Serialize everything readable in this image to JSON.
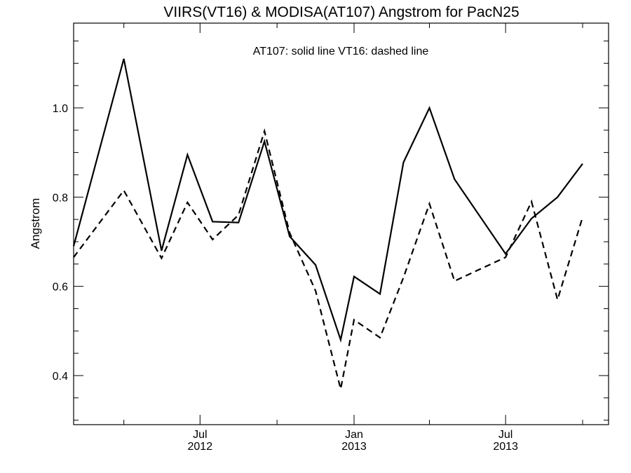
{
  "chart_data": {
    "type": "line",
    "title": "VIIRS(VT16) & MODISA(AT107)  Angstrom for PacN25",
    "ylabel": "Angstrom",
    "xlabel": "",
    "annotation": "AT107: solid line   VT16: dashed line",
    "xlim": [
      "2012-02-01",
      "2013-11-01"
    ],
    "ylim": [
      0.29,
      1.19
    ],
    "yticks": [
      {
        "value": 0.4,
        "label": "0.4"
      },
      {
        "value": 0.6,
        "label": "0.6"
      },
      {
        "value": 0.8,
        "label": "0.8"
      },
      {
        "value": 1.0,
        "label": "1.0"
      }
    ],
    "xticks": [
      {
        "date": "2012-07-01",
        "month": "Jul",
        "year": "2012"
      },
      {
        "date": "2013-01-01",
        "month": "Jan",
        "year": "2013"
      },
      {
        "date": "2013-07-01",
        "month": "Jul",
        "year": "2013"
      }
    ],
    "x_minor_ticks": [
      "2012-04-01",
      "2012-10-01",
      "2013-04-01",
      "2013-10-01"
    ],
    "legend": "none",
    "grid": false,
    "series": [
      {
        "id": "at107",
        "style": "solid",
        "color": "#000000",
        "points": [
          {
            "x": "2012-02-01",
            "y": 0.69
          },
          {
            "x": "2012-04-01",
            "y": 1.11
          },
          {
            "x": "2012-05-16",
            "y": 0.68
          },
          {
            "x": "2012-06-16",
            "y": 0.895
          },
          {
            "x": "2012-07-16",
            "y": 0.745
          },
          {
            "x": "2012-08-16",
            "y": 0.743
          },
          {
            "x": "2012-09-16",
            "y": 0.925
          },
          {
            "x": "2012-10-16",
            "y": 0.712
          },
          {
            "x": "2012-11-16",
            "y": 0.648
          },
          {
            "x": "2012-12-16",
            "y": 0.48
          },
          {
            "x": "2013-01-01",
            "y": 0.622
          },
          {
            "x": "2013-02-01",
            "y": 0.583
          },
          {
            "x": "2013-03-01",
            "y": 0.878
          },
          {
            "x": "2013-04-01",
            "y": 1.0
          },
          {
            "x": "2013-05-01",
            "y": 0.84
          },
          {
            "x": "2013-07-01",
            "y": 0.673
          },
          {
            "x": "2013-08-01",
            "y": 0.752
          },
          {
            "x": "2013-09-01",
            "y": 0.8
          },
          {
            "x": "2013-10-01",
            "y": 0.875
          }
        ]
      },
      {
        "id": "vt16",
        "style": "dashed",
        "color": "#000000",
        "points": [
          {
            "x": "2012-02-01",
            "y": 0.665
          },
          {
            "x": "2012-04-01",
            "y": 0.815
          },
          {
            "x": "2012-05-16",
            "y": 0.663
          },
          {
            "x": "2012-06-16",
            "y": 0.788
          },
          {
            "x": "2012-07-16",
            "y": 0.705
          },
          {
            "x": "2012-08-16",
            "y": 0.76
          },
          {
            "x": "2012-09-16",
            "y": 0.948
          },
          {
            "x": "2012-10-16",
            "y": 0.72
          },
          {
            "x": "2012-11-16",
            "y": 0.59
          },
          {
            "x": "2012-12-16",
            "y": 0.37
          },
          {
            "x": "2013-01-01",
            "y": 0.525
          },
          {
            "x": "2013-02-01",
            "y": 0.485
          },
          {
            "x": "2013-03-01",
            "y": 0.62
          },
          {
            "x": "2013-04-01",
            "y": 0.785
          },
          {
            "x": "2013-05-01",
            "y": 0.612
          },
          {
            "x": "2013-07-01",
            "y": 0.665
          },
          {
            "x": "2013-08-01",
            "y": 0.79
          },
          {
            "x": "2013-09-01",
            "y": 0.57
          },
          {
            "x": "2013-10-01",
            "y": 0.755
          }
        ]
      }
    ]
  }
}
